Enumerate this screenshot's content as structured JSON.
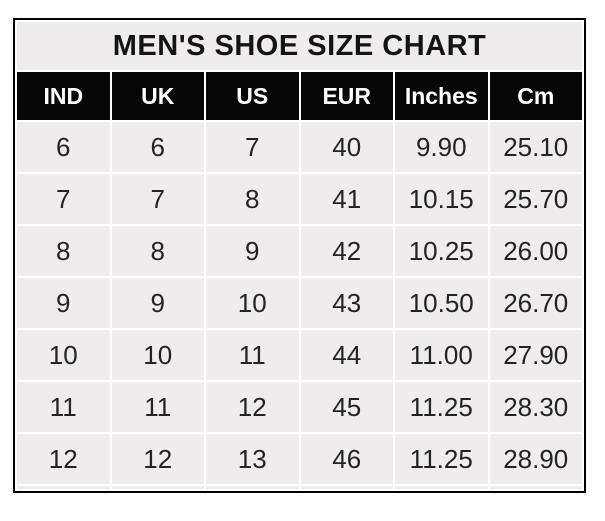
{
  "chart_data": {
    "type": "table",
    "title": "MEN'S SHOE SIZE CHART",
    "columns": [
      "IND",
      "UK",
      "US",
      "EUR",
      "Inches",
      "Cm"
    ],
    "rows": [
      [
        "6",
        "6",
        "7",
        "40",
        "9.90",
        "25.10"
      ],
      [
        "7",
        "7",
        "8",
        "41",
        "10.15",
        "25.70"
      ],
      [
        "8",
        "8",
        "9",
        "42",
        "10.25",
        "26.00"
      ],
      [
        "9",
        "9",
        "10",
        "43",
        "10.50",
        "26.70"
      ],
      [
        "10",
        "10",
        "11",
        "44",
        "11.00",
        "27.90"
      ],
      [
        "11",
        "11",
        "12",
        "45",
        "11.25",
        "28.30"
      ],
      [
        "12",
        "12",
        "13",
        "46",
        "11.25",
        "28.90"
      ]
    ],
    "layout": {
      "grid": "white 2px separators between gray cells",
      "outer_border": "2px solid black",
      "header_style": "black background, white bold text",
      "title_position": "top row spanning all columns"
    }
  },
  "colors": {
    "page_bg": "#ffffff",
    "cell_bg": "#eeedeb",
    "separator": "#ffffff",
    "outer_border": "#000000",
    "header_bg": "#070707",
    "header_text": "#ffffff",
    "body_text": "#232323",
    "title_text": "#141414"
  }
}
